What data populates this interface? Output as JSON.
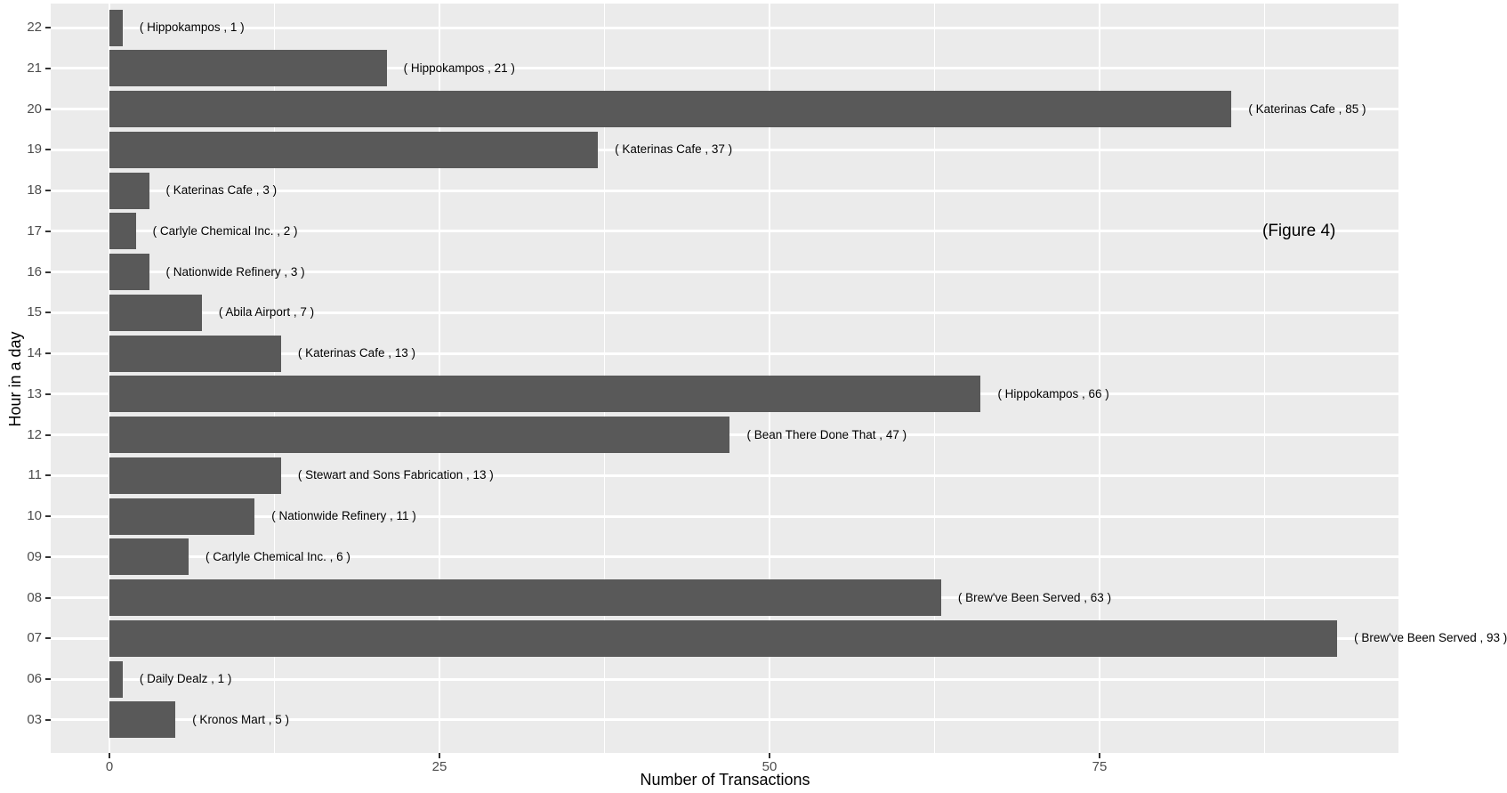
{
  "figure_label": "(Figure 4)",
  "colors": {
    "bar": "#595959",
    "panel_background": "#EBEBEB",
    "gridline": "#FFFFFF",
    "axis_text": "#4D4D4D",
    "bar_label_text": "#000000",
    "tick_mark": "#333333",
    "outer_background": "#FFFFFF"
  },
  "chart_data": {
    "type": "bar",
    "orientation": "horizontal",
    "xlabel": "Number of Transactions",
    "ylabel": "Hour in a day",
    "x_ticks": [
      0,
      25,
      50,
      75
    ],
    "x_minor_gridlines": [
      12.5,
      37.5,
      62.5,
      87.5
    ],
    "xlim": [
      -4.5,
      97.6
    ],
    "grid": "on",
    "legend_position": "none",
    "categories": [
      "22",
      "21",
      "20",
      "19",
      "18",
      "17",
      "16",
      "15",
      "14",
      "13",
      "12",
      "11",
      "10",
      "09",
      "08",
      "07",
      "06",
      "03"
    ],
    "bars": [
      {
        "hour": "22",
        "merchant": "Hippokampos",
        "transactions": 1,
        "label": "( Hippokampos , 1 )"
      },
      {
        "hour": "21",
        "merchant": "Hippokampos",
        "transactions": 21,
        "label": "( Hippokampos , 21 )"
      },
      {
        "hour": "20",
        "merchant": "Katerinas Cafe",
        "transactions": 85,
        "label": "( Katerinas Cafe , 85 )"
      },
      {
        "hour": "19",
        "merchant": "Katerinas Cafe",
        "transactions": 37,
        "label": "( Katerinas Cafe , 37 )"
      },
      {
        "hour": "18",
        "merchant": "Katerinas Cafe",
        "transactions": 3,
        "label": "( Katerinas Cafe , 3 )"
      },
      {
        "hour": "17",
        "merchant": "Carlyle Chemical Inc.",
        "transactions": 2,
        "label": "( Carlyle Chemical Inc. , 2 )"
      },
      {
        "hour": "16",
        "merchant": "Nationwide Refinery",
        "transactions": 3,
        "label": "( Nationwide Refinery , 3 )"
      },
      {
        "hour": "15",
        "merchant": "Abila Airport",
        "transactions": 7,
        "label": "( Abila Airport , 7 )"
      },
      {
        "hour": "14",
        "merchant": "Katerinas Cafe",
        "transactions": 13,
        "label": "( Katerinas Cafe , 13 )"
      },
      {
        "hour": "13",
        "merchant": "Hippokampos",
        "transactions": 66,
        "label": "( Hippokampos , 66 )"
      },
      {
        "hour": "12",
        "merchant": "Bean There Done That",
        "transactions": 47,
        "label": "( Bean There Done That , 47 )"
      },
      {
        "hour": "11",
        "merchant": "Stewart and Sons Fabrication",
        "transactions": 13,
        "label": "( Stewart and Sons Fabrication , 13 )"
      },
      {
        "hour": "10",
        "merchant": "Nationwide Refinery",
        "transactions": 11,
        "label": "( Nationwide Refinery , 11 )"
      },
      {
        "hour": "09",
        "merchant": "Carlyle Chemical Inc.",
        "transactions": 6,
        "label": "( Carlyle Chemical Inc. , 6 )"
      },
      {
        "hour": "08",
        "merchant": "Brew've Been Served",
        "transactions": 63,
        "label": "( Brew've Been Served , 63 )"
      },
      {
        "hour": "07",
        "merchant": "Brew've Been Served",
        "transactions": 93,
        "label": "( Brew've Been Served , 93 )"
      },
      {
        "hour": "06",
        "merchant": "Daily Dealz",
        "transactions": 1,
        "label": "( Daily Dealz , 1 )"
      },
      {
        "hour": "03",
        "merchant": "Kronos Mart",
        "transactions": 5,
        "label": "( Kronos Mart , 5 )"
      }
    ]
  }
}
